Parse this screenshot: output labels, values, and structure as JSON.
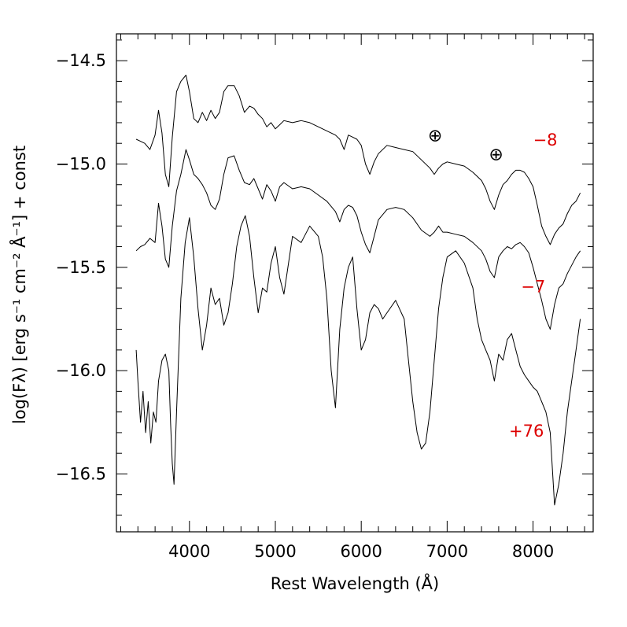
{
  "chart_data": {
    "type": "line",
    "title": "",
    "xlabel": "Rest Wavelength (Å)",
    "ylabel": "log(Fλ) [erg s⁻¹ cm⁻² Å⁻¹] + const",
    "xlim": [
      3150,
      8700
    ],
    "ylim": [
      -16.78,
      -14.37
    ],
    "xticks": [
      4000,
      5000,
      6000,
      7000,
      8000
    ],
    "xtick_labels": [
      "4000",
      "5000",
      "6000",
      "7000",
      "8000"
    ],
    "yticks": [
      -14.5,
      -15.0,
      -15.5,
      -16.0,
      -16.5
    ],
    "ytick_labels": [
      "−14.5",
      "−15.0",
      "−15.5",
      "−16.0",
      "−16.5"
    ],
    "grid": false,
    "telluric_symbol": "⊕",
    "telluric_marks": [
      {
        "x": 6860,
        "y": -14.86
      },
      {
        "x": 7570,
        "y": -14.95
      }
    ],
    "label_color": "#dd0000",
    "series": [
      {
        "name": "−8",
        "label": "−8",
        "label_x": 8000,
        "label_y": -14.91,
        "x": [
          3380,
          3430,
          3480,
          3540,
          3600,
          3640,
          3680,
          3720,
          3760,
          3800,
          3850,
          3900,
          3960,
          4000,
          4050,
          4100,
          4150,
          4200,
          4250,
          4300,
          4350,
          4400,
          4450,
          4520,
          4580,
          4640,
          4700,
          4750,
          4800,
          4850,
          4900,
          4950,
          5000,
          5050,
          5100,
          5200,
          5300,
          5400,
          5500,
          5600,
          5700,
          5750,
          5800,
          5850,
          5900,
          5950,
          6000,
          6050,
          6100,
          6150,
          6200,
          6300,
          6400,
          6500,
          6600,
          6700,
          6800,
          6850,
          6900,
          6950,
          7000,
          7100,
          7200,
          7300,
          7400,
          7450,
          7500,
          7550,
          7600,
          7650,
          7700,
          7750,
          7800,
          7850,
          7900,
          7950,
          8000,
          8050,
          8100,
          8150,
          8200,
          8250,
          8300,
          8350,
          8400,
          8450,
          8500,
          8550
        ],
        "values": [
          -14.88,
          -14.89,
          -14.9,
          -14.93,
          -14.86,
          -14.74,
          -14.85,
          -15.05,
          -15.11,
          -14.87,
          -14.65,
          -14.6,
          -14.57,
          -14.65,
          -14.78,
          -14.8,
          -14.75,
          -14.79,
          -14.74,
          -14.78,
          -14.75,
          -14.65,
          -14.62,
          -14.62,
          -14.67,
          -14.75,
          -14.72,
          -14.73,
          -14.76,
          -14.78,
          -14.82,
          -14.8,
          -14.83,
          -14.81,
          -14.79,
          -14.8,
          -14.79,
          -14.8,
          -14.82,
          -14.84,
          -14.86,
          -14.88,
          -14.93,
          -14.86,
          -14.87,
          -14.88,
          -14.91,
          -15.0,
          -15.05,
          -14.99,
          -14.95,
          -14.91,
          -14.92,
          -14.93,
          -14.94,
          -14.98,
          -15.02,
          -15.05,
          -15.02,
          -15.0,
          -14.99,
          -15.0,
          -15.01,
          -15.04,
          -15.08,
          -15.12,
          -15.18,
          -15.22,
          -15.15,
          -15.1,
          -15.08,
          -15.05,
          -15.03,
          -15.03,
          -15.04,
          -15.07,
          -15.11,
          -15.2,
          -15.3,
          -15.35,
          -15.39,
          -15.34,
          -15.31,
          -15.29,
          -15.24,
          -15.2,
          -15.18,
          -15.14
        ]
      },
      {
        "name": "−7",
        "label": "−7",
        "label_x": 7860,
        "label_y": -15.62,
        "x": [
          3380,
          3430,
          3480,
          3540,
          3600,
          3640,
          3680,
          3720,
          3760,
          3800,
          3850,
          3900,
          3960,
          4000,
          4050,
          4100,
          4150,
          4200,
          4250,
          4300,
          4350,
          4400,
          4450,
          4520,
          4580,
          4640,
          4700,
          4750,
          4800,
          4850,
          4900,
          4950,
          5000,
          5050,
          5100,
          5200,
          5300,
          5400,
          5500,
          5600,
          5700,
          5750,
          5800,
          5850,
          5900,
          5950,
          6000,
          6050,
          6100,
          6150,
          6200,
          6300,
          6400,
          6500,
          6600,
          6700,
          6800,
          6850,
          6900,
          6950,
          7000,
          7100,
          7200,
          7300,
          7400,
          7450,
          7500,
          7550,
          7600,
          7650,
          7700,
          7750,
          7800,
          7850,
          7900,
          7950,
          8000,
          8050,
          8100,
          8150,
          8200,
          8250,
          8300,
          8350,
          8400,
          8450,
          8500,
          8550
        ],
        "values": [
          -15.42,
          -15.4,
          -15.39,
          -15.36,
          -15.38,
          -15.19,
          -15.3,
          -15.46,
          -15.5,
          -15.3,
          -15.13,
          -15.05,
          -14.93,
          -14.98,
          -15.05,
          -15.07,
          -15.1,
          -15.14,
          -15.2,
          -15.22,
          -15.17,
          -15.05,
          -14.97,
          -14.96,
          -15.03,
          -15.09,
          -15.1,
          -15.07,
          -15.12,
          -15.17,
          -15.1,
          -15.13,
          -15.18,
          -15.11,
          -15.09,
          -15.12,
          -15.11,
          -15.12,
          -15.15,
          -15.18,
          -15.23,
          -15.28,
          -15.22,
          -15.2,
          -15.21,
          -15.25,
          -15.33,
          -15.39,
          -15.43,
          -15.35,
          -15.27,
          -15.22,
          -15.21,
          -15.22,
          -15.26,
          -15.32,
          -15.35,
          -15.33,
          -15.3,
          -15.33,
          -15.33,
          -15.34,
          -15.35,
          -15.38,
          -15.42,
          -15.46,
          -15.52,
          -15.55,
          -15.45,
          -15.42,
          -15.4,
          -15.41,
          -15.39,
          -15.38,
          -15.4,
          -15.43,
          -15.5,
          -15.58,
          -15.66,
          -15.75,
          -15.8,
          -15.68,
          -15.6,
          -15.58,
          -15.53,
          -15.49,
          -15.45,
          -15.42
        ]
      },
      {
        "name": "+76",
        "label": "+76",
        "label_x": 7720,
        "label_y": -16.32,
        "x": [
          3380,
          3400,
          3430,
          3460,
          3490,
          3520,
          3550,
          3580,
          3610,
          3640,
          3680,
          3720,
          3760,
          3780,
          3800,
          3820,
          3850,
          3900,
          3950,
          4000,
          4050,
          4100,
          4150,
          4200,
          4250,
          4300,
          4350,
          4400,
          4450,
          4500,
          4550,
          4600,
          4650,
          4700,
          4750,
          4800,
          4850,
          4900,
          4950,
          5000,
          5050,
          5100,
          5200,
          5300,
          5400,
          5500,
          5550,
          5600,
          5650,
          5700,
          5750,
          5800,
          5850,
          5900,
          5950,
          6000,
          6050,
          6100,
          6150,
          6200,
          6250,
          6300,
          6400,
          6500,
          6550,
          6600,
          6650,
          6700,
          6750,
          6800,
          6850,
          6900,
          6950,
          7000,
          7100,
          7200,
          7300,
          7350,
          7400,
          7450,
          7500,
          7550,
          7600,
          7650,
          7700,
          7750,
          7800,
          7850,
          7900,
          7950,
          8000,
          8050,
          8100,
          8150,
          8200,
          8250,
          8300,
          8350,
          8400,
          8450,
          8500,
          8550
        ],
        "values": [
          -15.9,
          -16.05,
          -16.25,
          -16.1,
          -16.3,
          -16.15,
          -16.35,
          -16.2,
          -16.25,
          -16.05,
          -15.95,
          -15.92,
          -16.0,
          -16.25,
          -16.45,
          -16.55,
          -16.2,
          -15.65,
          -15.38,
          -15.26,
          -15.45,
          -15.7,
          -15.9,
          -15.78,
          -15.6,
          -15.68,
          -15.65,
          -15.78,
          -15.72,
          -15.58,
          -15.4,
          -15.3,
          -15.25,
          -15.35,
          -15.55,
          -15.72,
          -15.6,
          -15.62,
          -15.48,
          -15.4,
          -15.55,
          -15.63,
          -15.35,
          -15.38,
          -15.3,
          -15.35,
          -15.45,
          -15.65,
          -16.0,
          -16.18,
          -15.8,
          -15.6,
          -15.5,
          -15.45,
          -15.7,
          -15.9,
          -15.85,
          -15.72,
          -15.68,
          -15.7,
          -15.75,
          -15.72,
          -15.66,
          -15.75,
          -15.95,
          -16.15,
          -16.3,
          -16.38,
          -16.35,
          -16.2,
          -15.95,
          -15.7,
          -15.55,
          -15.45,
          -15.42,
          -15.48,
          -15.6,
          -15.75,
          -15.85,
          -15.9,
          -15.95,
          -16.05,
          -15.92,
          -15.95,
          -15.85,
          -15.82,
          -15.9,
          -15.98,
          -16.02,
          -16.05,
          -16.08,
          -16.1,
          -16.15,
          -16.2,
          -16.3,
          -16.65,
          -16.55,
          -16.4,
          -16.2,
          -16.05,
          -15.9,
          -15.75
        ]
      }
    ]
  }
}
